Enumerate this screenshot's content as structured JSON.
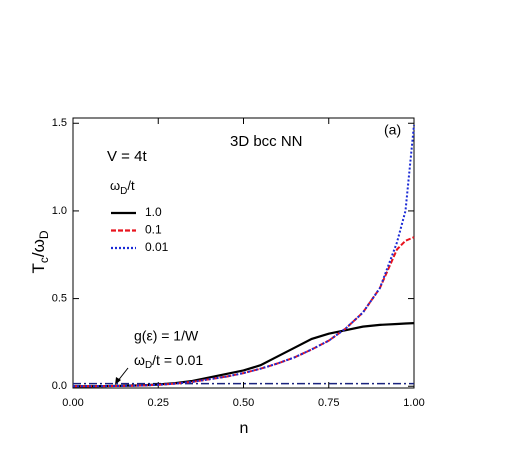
{
  "chart_data": {
    "type": "line",
    "title": "3D bcc  NN",
    "panel_label": "(a)",
    "condition": "V = 4t",
    "legend_title": [
      "ω",
      "D",
      "/t"
    ],
    "xlabel": "n",
    "ylabel": [
      "T",
      "c",
      "/ω",
      "D"
    ],
    "annotation": {
      "line1": "g(ε) = 1/W",
      "line2": [
        "ω",
        "D",
        "/t = 0.01"
      ]
    },
    "x": [
      0,
      0.05,
      0.1,
      0.15,
      0.2,
      0.25,
      0.3,
      0.35,
      0.4,
      0.45,
      0.5,
      0.55,
      0.6,
      0.65,
      0.7,
      0.75,
      0.8,
      0.85,
      0.9,
      0.95,
      0.975,
      1.0
    ],
    "series": [
      {
        "name": "1.0",
        "color": "#000000",
        "dash": "solid",
        "values": [
          0,
          0,
          0.001,
          0.003,
          0.005,
          0.01,
          0.018,
          0.03,
          0.05,
          0.07,
          0.09,
          0.12,
          0.17,
          0.22,
          0.27,
          0.3,
          0.32,
          0.34,
          0.35,
          0.355,
          0.358,
          0.36
        ]
      },
      {
        "name": "0.1",
        "color": "#e8141e",
        "dash": "dashed",
        "values": [
          0,
          0,
          0.001,
          0.002,
          0.004,
          0.008,
          0.015,
          0.025,
          0.04,
          0.055,
          0.075,
          0.1,
          0.13,
          0.165,
          0.21,
          0.26,
          0.33,
          0.42,
          0.56,
          0.78,
          0.83,
          0.85
        ]
      },
      {
        "name": "0.01",
        "color": "#1a2ad6",
        "dash": "dotted",
        "values": [
          0,
          0,
          0.001,
          0.002,
          0.004,
          0.008,
          0.015,
          0.025,
          0.04,
          0.055,
          0.075,
          0.1,
          0.13,
          0.165,
          0.21,
          0.26,
          0.33,
          0.42,
          0.56,
          0.82,
          1.0,
          1.49
        ]
      }
    ],
    "flat_band": {
      "color": "#1a237e",
      "values": [
        0.015,
        0.015,
        0.015,
        0.015,
        0.015,
        0.015,
        0.015,
        0.015,
        0.015,
        0.015,
        0.015,
        0.015,
        0.015,
        0.015,
        0.015,
        0.015,
        0.015,
        0.015,
        0.015,
        0.015,
        0.015,
        0.015
      ]
    },
    "xlim": [
      0,
      1.0
    ],
    "ylim": [
      -0.01,
      1.53
    ],
    "xticks": [
      {
        "value": 0,
        "label": "0.00"
      },
      {
        "value": 0.25,
        "label": "0.25"
      },
      {
        "value": 0.5,
        "label": "0.50"
      },
      {
        "value": 0.75,
        "label": "0.75"
      },
      {
        "value": 1.0,
        "label": "1.00"
      }
    ],
    "yticks": [
      {
        "value": 0,
        "label": "0.0"
      },
      {
        "value": 0.5,
        "label": "0.5"
      },
      {
        "value": 1.0,
        "label": "1.0"
      },
      {
        "value": 1.5,
        "label": "1.5"
      }
    ]
  }
}
